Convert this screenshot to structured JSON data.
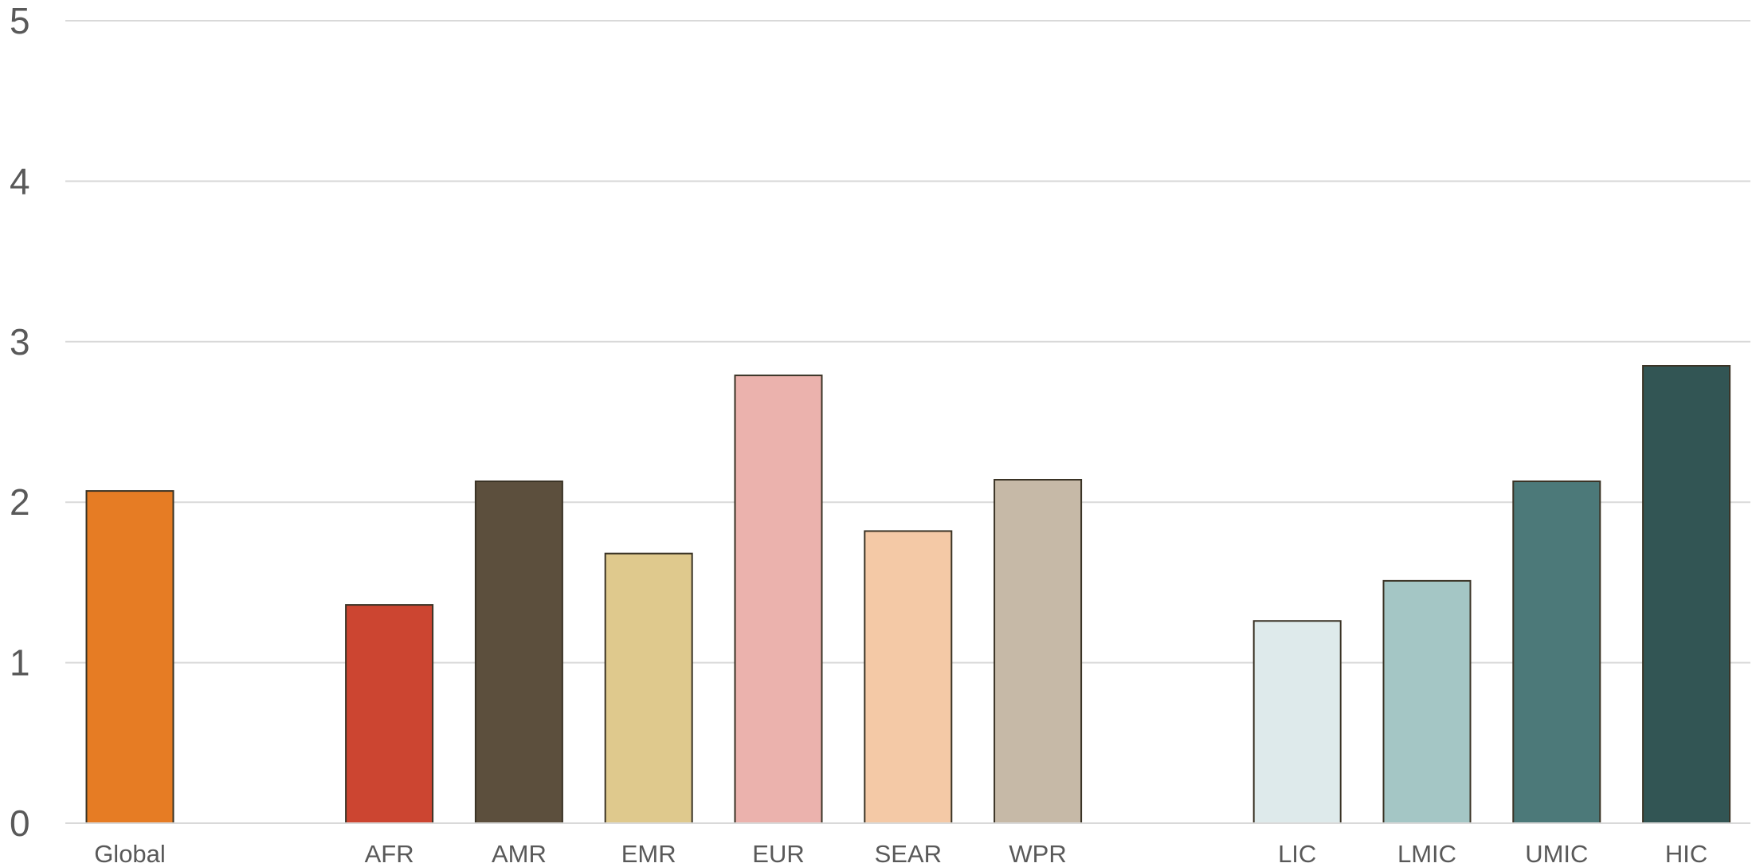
{
  "chart_data": {
    "type": "bar",
    "categories": [
      "Global",
      "",
      "AFR",
      "AMR",
      "EMR",
      "EUR",
      "SEAR",
      "WPR",
      "",
      "LIC",
      "LMIC",
      "UMIC",
      "HIC"
    ],
    "values": [
      2.07,
      null,
      1.36,
      2.13,
      1.68,
      2.79,
      1.82,
      2.14,
      null,
      1.26,
      1.51,
      2.13,
      2.85
    ],
    "colors": [
      "#e67c24",
      null,
      "#cc4531",
      "#5c4f3d",
      "#dfc98d",
      "#ebb2ad",
      "#f4c9a6",
      "#c6b9a7",
      null,
      "#deeaeb",
      "#a4c6c5",
      "#4c7979",
      "#325554"
    ],
    "ylim": [
      0,
      5
    ],
    "yticks": [
      0,
      1,
      2,
      3,
      4,
      5
    ],
    "grid": true,
    "legend": "none",
    "title": "",
    "xlabel": "",
    "ylabel": ""
  }
}
